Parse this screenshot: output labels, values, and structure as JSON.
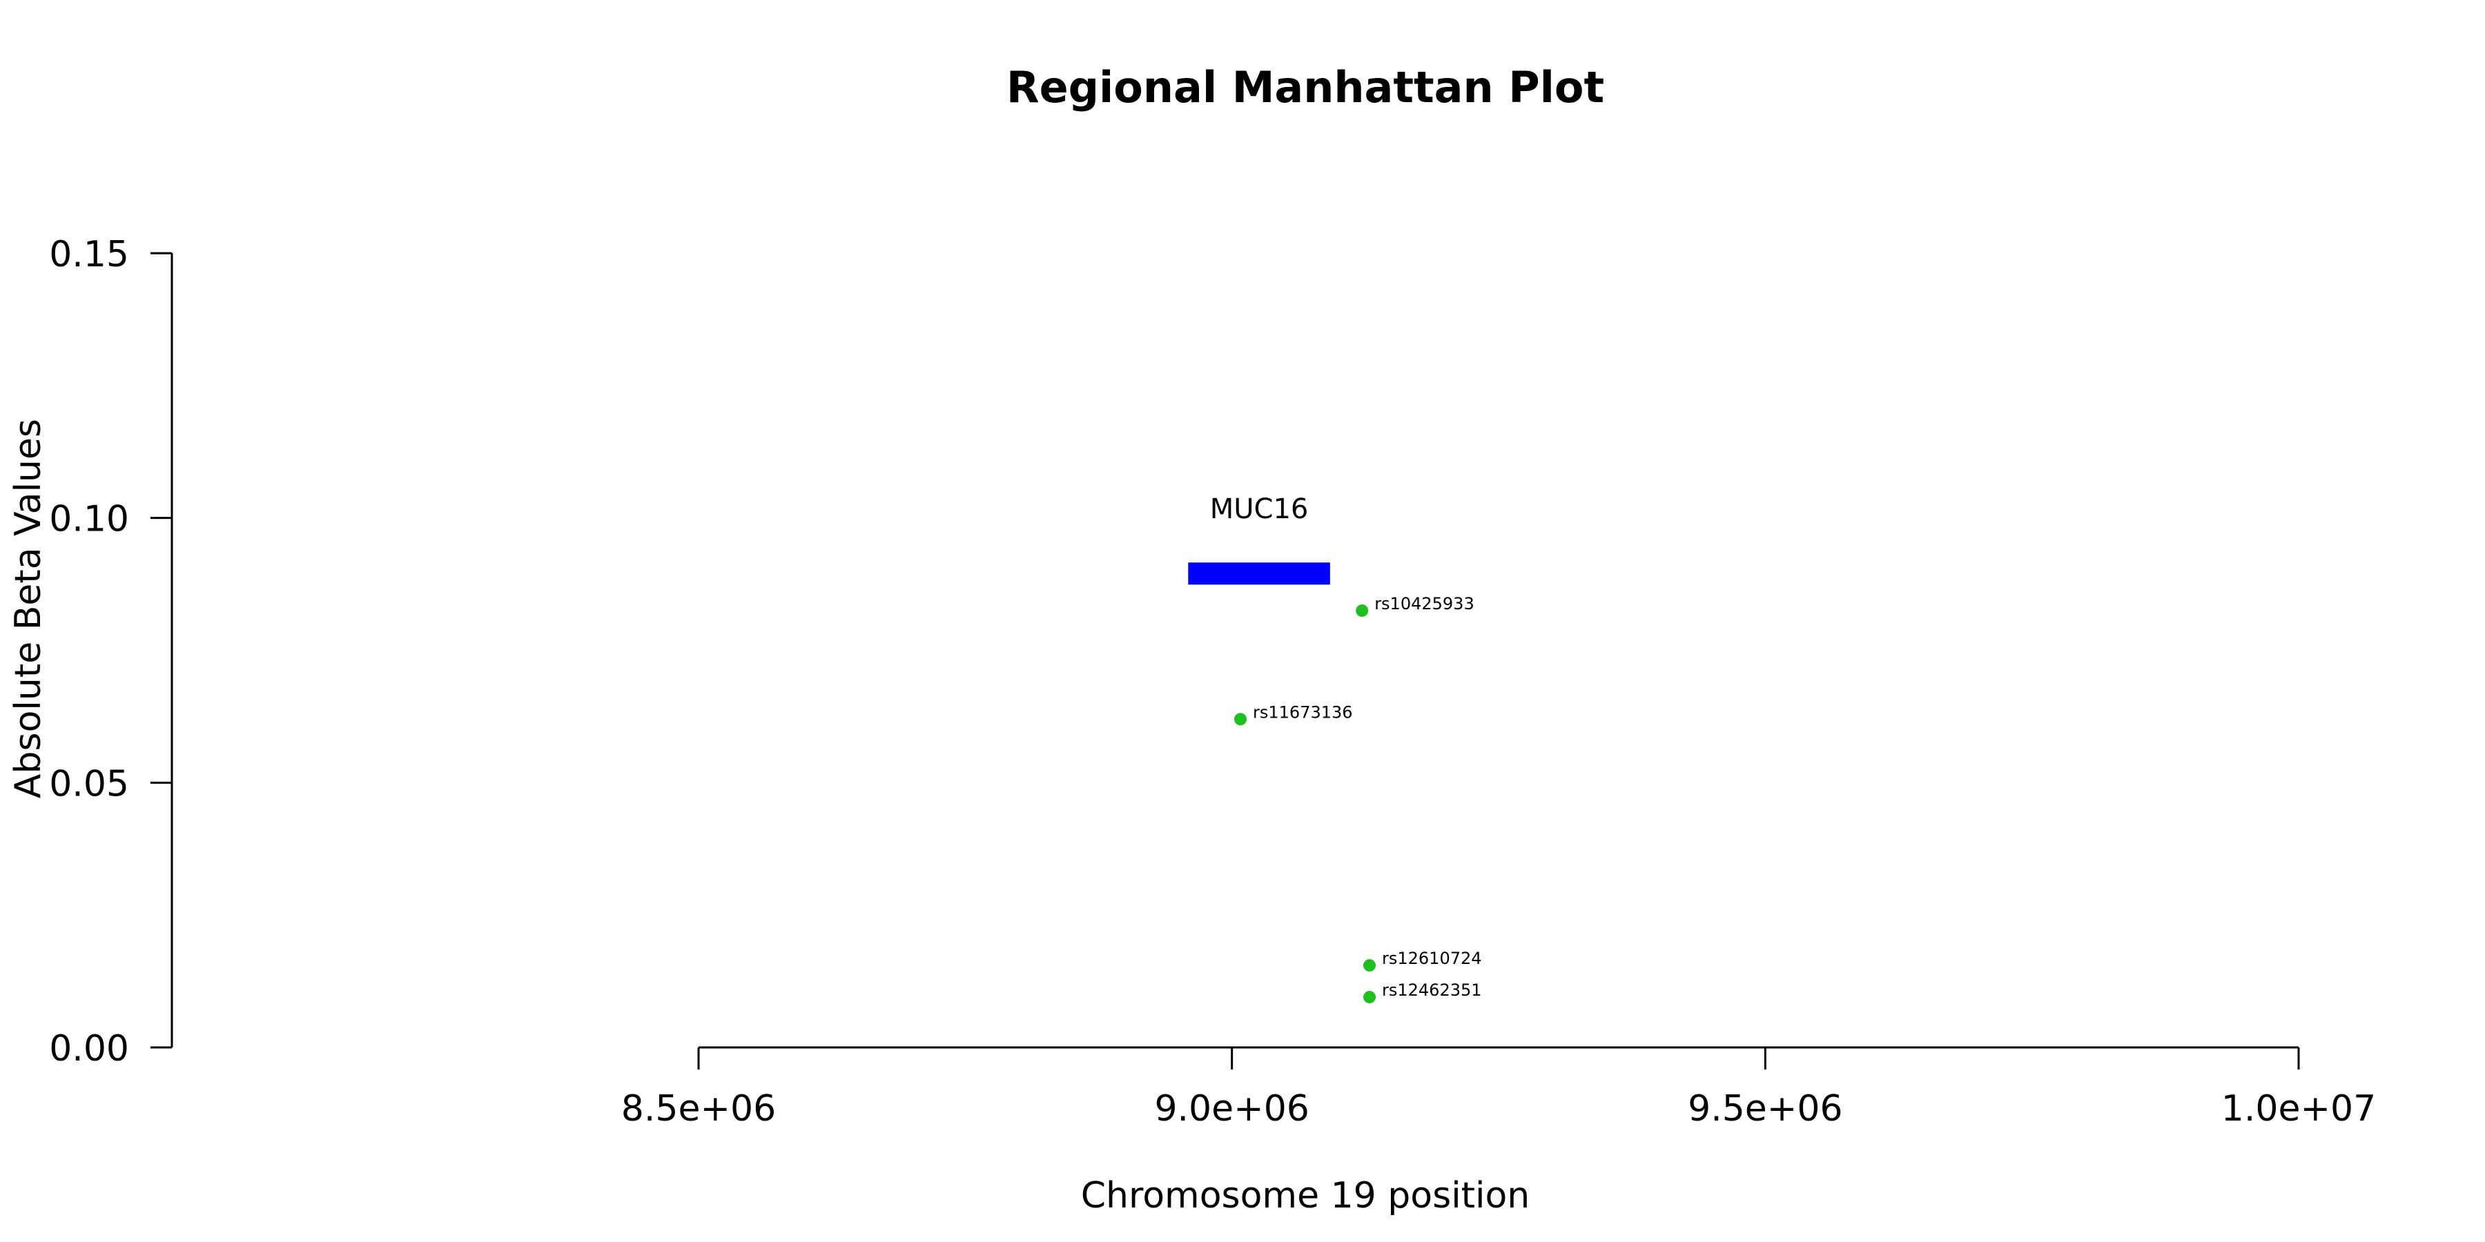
{
  "chart_data": {
    "type": "scatter",
    "title": "Regional Manhattan Plot",
    "xlabel": "Chromosome 19 position",
    "ylabel": "Absolute Beta Values",
    "xlim": [
      8500000,
      10000000
    ],
    "ylim": [
      0,
      0.15
    ],
    "x_ticks": [
      8500000,
      9000000,
      9500000,
      10000000
    ],
    "x_tick_labels": [
      "8.5e+06",
      "9.0e+06",
      "9.5e+06",
      "1.0e+07"
    ],
    "y_ticks": [
      0,
      0.05,
      0.1,
      0.15
    ],
    "y_tick_labels": [
      "0.00",
      "0.05",
      "0.10",
      "0.15"
    ],
    "grid": false,
    "point_color": "#1FBF1F",
    "points": [
      {
        "label": "rs10425933",
        "x": 9122000,
        "y": 0.0825
      },
      {
        "label": "rs11673136",
        "x": 9008000,
        "y": 0.062
      },
      {
        "label": "rs12610724",
        "x": 9129000,
        "y": 0.0155
      },
      {
        "label": "rs12462351",
        "x": 9129000,
        "y": 0.0095
      }
    ],
    "genes": [
      {
        "name": "MUC16",
        "start": 8959000,
        "end": 9092000,
        "y": 0.0895,
        "color": "#0000FF"
      }
    ]
  }
}
